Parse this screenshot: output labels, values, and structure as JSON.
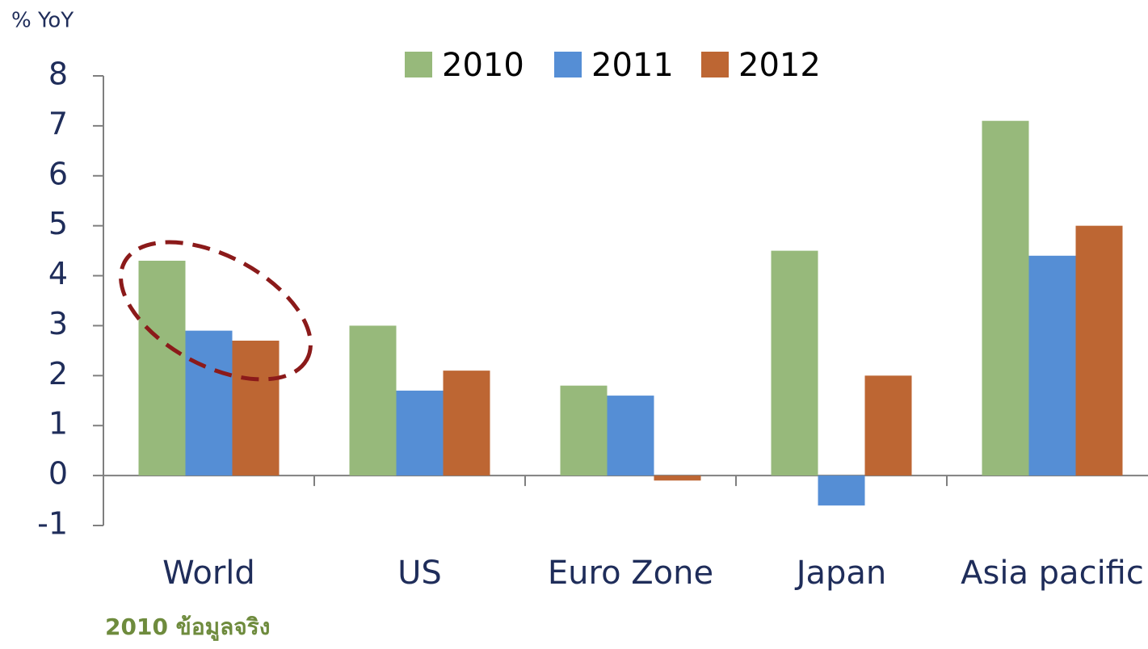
{
  "chart_data": {
    "type": "bar",
    "y_axis_label": "% YoY",
    "annotation": "2010 ข้อมูลจริง",
    "categories": [
      "World",
      "US",
      "Euro Zone",
      "Japan",
      "Asia pacific"
    ],
    "series": [
      {
        "name": "2010",
        "color": "#97b97b",
        "values": [
          4.3,
          3.0,
          1.8,
          4.5,
          7.1
        ]
      },
      {
        "name": "2011",
        "color": "#558ed5",
        "values": [
          2.9,
          1.7,
          1.6,
          -0.6,
          4.4
        ]
      },
      {
        "name": "2012",
        "color": "#bd6633",
        "values": [
          2.7,
          2.1,
          -0.1,
          2.0,
          5.0
        ]
      }
    ],
    "ylim": [
      -1,
      8
    ],
    "yticks": [
      -1,
      0,
      1,
      2,
      3,
      4,
      5,
      6,
      7,
      8
    ],
    "legend": "top",
    "grid": false
  }
}
